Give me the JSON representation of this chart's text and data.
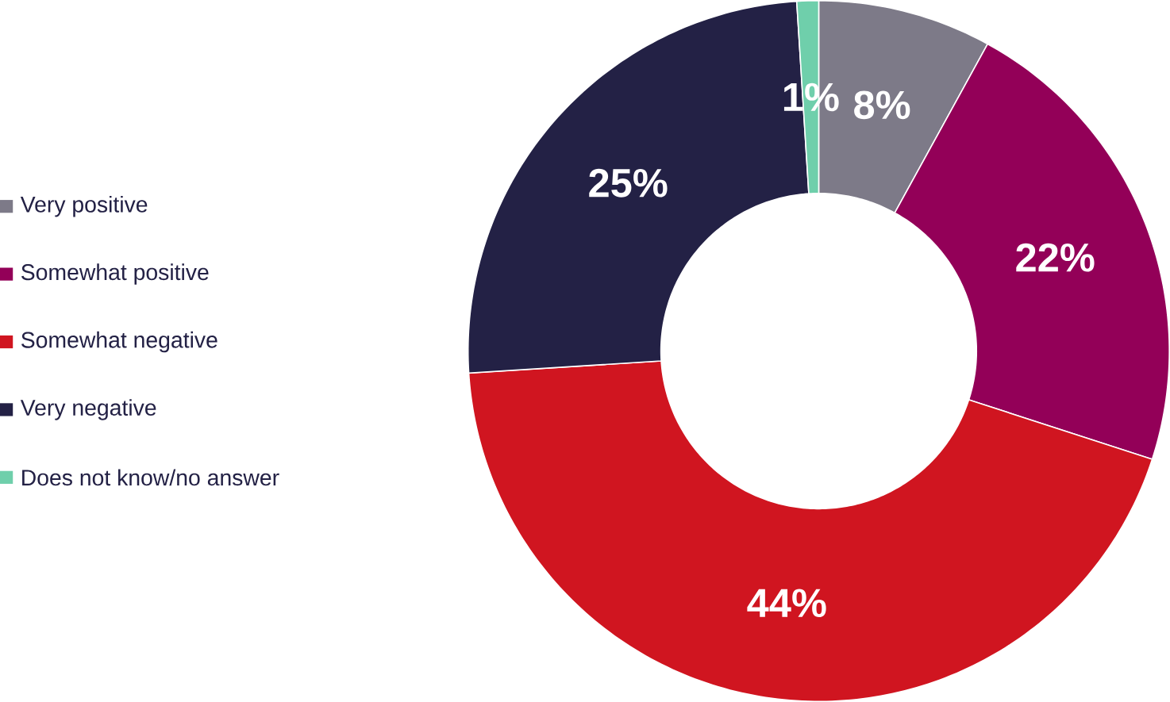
{
  "chart_data": {
    "type": "donut",
    "categories": [
      "Very positive",
      "Somewhat positive",
      "Somewhat negative",
      "Very negative",
      "Does not know/no answer"
    ],
    "values": [
      8,
      22,
      44,
      25,
      1
    ],
    "colors": [
      "#7d7a88",
      "#930058",
      "#d01520",
      "#232145",
      "#6fcfab"
    ],
    "value_labels": [
      "8%",
      "22%",
      "44%",
      "25%",
      "1%"
    ],
    "legend": "left"
  }
}
